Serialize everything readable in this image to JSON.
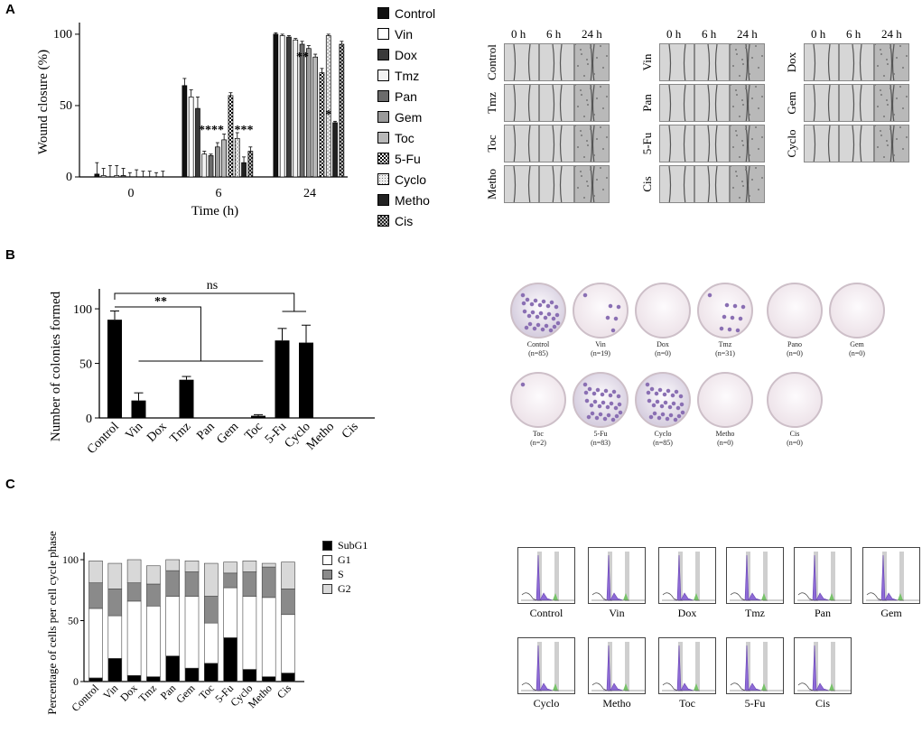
{
  "panels": {
    "a": "A",
    "b": "B",
    "c": "C"
  },
  "panelA": {
    "chart_data": {
      "type": "bar",
      "ylabel": "Wound closure (%)",
      "xlabel": "Time (h)",
      "categories": [
        "0",
        "6",
        "24"
      ],
      "yticks": [
        "0",
        "50",
        "100"
      ],
      "ylim": [
        0,
        105
      ],
      "series": [
        {
          "name": "Control",
          "values": [
            2,
            64,
            100
          ],
          "err": [
            8,
            5,
            1
          ]
        },
        {
          "name": "Vin",
          "values": [
            1,
            56,
            99
          ],
          "err": [
            5,
            5,
            1
          ]
        },
        {
          "name": "Dox",
          "values": [
            0,
            48,
            98
          ],
          "err": [
            8,
            8,
            1
          ]
        },
        {
          "name": "Tmz",
          "values": [
            1,
            16,
            96
          ],
          "err": [
            7,
            2,
            1
          ]
        },
        {
          "name": "Pan",
          "values": [
            1,
            15,
            93
          ],
          "err": [
            5,
            1,
            2
          ]
        },
        {
          "name": "Gem",
          "values": [
            0,
            21,
            90
          ],
          "err": [
            3,
            3,
            2
          ]
        },
        {
          "name": "Toc",
          "values": [
            0,
            26,
            84
          ],
          "err": [
            5,
            4,
            2
          ]
        },
        {
          "name": "5-Fu",
          "values": [
            0,
            57,
            73
          ],
          "err": [
            4,
            2,
            3
          ]
        },
        {
          "name": "Cyclo",
          "values": [
            0,
            27,
            99
          ],
          "err": [
            4,
            4,
            1
          ]
        },
        {
          "name": "Metho",
          "values": [
            0,
            10,
            38
          ],
          "err": [
            3,
            4,
            1
          ]
        },
        {
          "name": "Cis",
          "values": [
            0,
            18,
            93
          ],
          "err": [
            4,
            3,
            2
          ]
        }
      ],
      "annotations": [
        "****",
        "***",
        "**",
        "*"
      ]
    },
    "legend": [
      {
        "label": "Control",
        "color": "#111111",
        "pattern": "solid"
      },
      {
        "label": "Vin",
        "color": "#ffffff",
        "pattern": "solid"
      },
      {
        "label": "Dox",
        "color": "#3a3a3a",
        "pattern": "solid"
      },
      {
        "label": "Tmz",
        "color": "#f2f2f2",
        "pattern": "solid"
      },
      {
        "label": "Pan",
        "color": "#6b6b6b",
        "pattern": "solid"
      },
      {
        "label": "Gem",
        "color": "#9a9a9a",
        "pattern": "solid"
      },
      {
        "label": "Toc",
        "color": "#b8b8b8",
        "pattern": "solid"
      },
      {
        "label": "5-Fu",
        "color": "#ffffff",
        "pattern": "check"
      },
      {
        "label": "Cyclo",
        "color": "#dddddd",
        "pattern": "dots"
      },
      {
        "label": "Metho",
        "color": "#222222",
        "pattern": "solid"
      },
      {
        "label": "Cis",
        "color": "#555555",
        "pattern": "check"
      }
    ],
    "wound": {
      "time_labels": [
        "0 h",
        "6 h",
        "24 h"
      ],
      "groups": [
        [
          "Control",
          "Tmz",
          "Toc",
          "Metho"
        ],
        [
          "Vin",
          "Pan",
          "5-Fu",
          "Cis"
        ],
        [
          "Dox",
          "Gem",
          "Cyclo"
        ]
      ]
    }
  },
  "panelB": {
    "chart_data": {
      "type": "bar",
      "ylabel": "Number of colonies formed",
      "categories": [
        "Control",
        "Vin",
        "Dox",
        "Tmz",
        "Pan",
        "Gem",
        "Toc",
        "5-Fu",
        "Cyclo",
        "Metho",
        "Cis"
      ],
      "values": [
        90,
        16,
        0,
        35,
        0,
        0,
        2,
        71,
        69,
        0,
        0
      ],
      "err": [
        8,
        7,
        0,
        3,
        0,
        0,
        1,
        11,
        16,
        0,
        0
      ],
      "yticks": [
        "0",
        "50",
        "100"
      ],
      "ylim": [
        0,
        110
      ],
      "annotations": [
        "**",
        "ns"
      ]
    },
    "dishes": [
      {
        "name": "Control",
        "n": "(n=85)",
        "density": 85
      },
      {
        "name": "Vin",
        "n": "(n=19)",
        "density": 19
      },
      {
        "name": "Dox",
        "n": "(n=0)",
        "density": 0
      },
      {
        "name": "Tmz",
        "n": "(n=31)",
        "density": 31
      },
      {
        "name": "Pano",
        "n": "(n=0)",
        "density": 0
      },
      {
        "name": "Gem",
        "n": "(n=0)",
        "density": 0
      },
      {
        "name": "Toc",
        "n": "(n=2)",
        "density": 2
      },
      {
        "name": "5-Fu",
        "n": "(n=83)",
        "density": 83
      },
      {
        "name": "Cyclo",
        "n": "(n=85)",
        "density": 85
      },
      {
        "name": "Metho",
        "n": "(n=0)",
        "density": 0
      },
      {
        "name": "Cis",
        "n": "(n=0)",
        "density": 0
      }
    ]
  },
  "panelC": {
    "chart_data": {
      "type": "bar",
      "stacked": true,
      "ylabel": "Percentage of cells per cell cycle phase",
      "categories": [
        "Control",
        "Vin",
        "Dox",
        "Tmz",
        "Pan",
        "Gem",
        "Toc",
        "5-Fu",
        "Cyclo",
        "Metho",
        "Cis"
      ],
      "yticks": [
        "0",
        "50",
        "100"
      ],
      "ylim": [
        0,
        100
      ],
      "series": [
        {
          "name": "SubG1",
          "values": [
            3,
            19,
            5,
            4,
            21,
            11,
            15,
            36,
            10,
            4,
            7
          ]
        },
        {
          "name": "G1",
          "values": [
            57,
            35,
            61,
            58,
            49,
            59,
            33,
            41,
            60,
            65,
            48
          ]
        },
        {
          "name": "S",
          "values": [
            21,
            22,
            15,
            18,
            21,
            20,
            22,
            12,
            20,
            25,
            21
          ]
        },
        {
          "name": "G2",
          "values": [
            18,
            21,
            19,
            15,
            9,
            9,
            27,
            9,
            9,
            3,
            22
          ]
        }
      ]
    },
    "legend": [
      {
        "label": "SubG1",
        "color": "#000000"
      },
      {
        "label": "G1",
        "color": "#ffffff"
      },
      {
        "label": "S",
        "color": "#8a8a8a"
      },
      {
        "label": "G2",
        "color": "#d8d8d8"
      }
    ],
    "histograms": [
      "Control",
      "Vin",
      "Dox",
      "Tmz",
      "Pan",
      "Gem",
      "Cyclo",
      "Metho",
      "Toc",
      "5-Fu",
      "Cis"
    ]
  }
}
